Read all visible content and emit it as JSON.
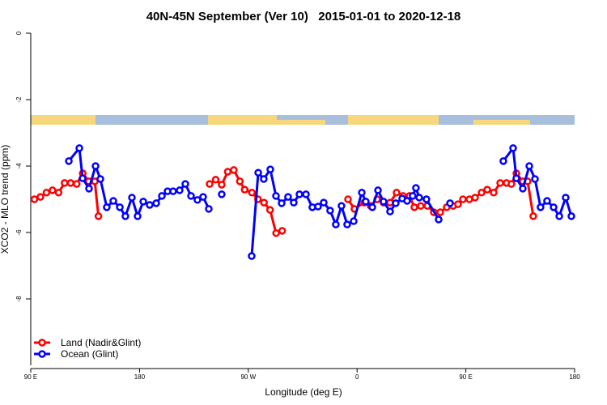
{
  "chart_data": {
    "type": "line",
    "title": "40N-45N September (Ver 10)   2015-01-01 to 2020-12-18",
    "x_label": "Longitude (deg E)",
    "y_label": "XCO2 - MLO trend (ppm)",
    "xlim": [
      90,
      540
    ],
    "xticks": [
      {
        "value": 90,
        "label": "90 E"
      },
      180,
      {
        "value": 270,
        "label": "90 W"
      },
      {
        "value": 360,
        "label": "0"
      },
      {
        "value": 450,
        "label": "90 E"
      },
      {
        "value": 540,
        "label": "180"
      }
    ],
    "ylim": [
      -10,
      0
    ],
    "yticks": [
      0,
      -2,
      -4,
      -6,
      -8
    ],
    "legend": "bottom-left",
    "series": [
      {
        "name": "Land (Nadir&Glint)",
        "color": "#ff0000",
        "x": [
          93,
          98,
          103,
          108,
          113,
          118,
          123,
          128,
          133,
          138,
          143,
          146,
          null,
          238,
          243,
          248,
          253,
          258,
          263,
          267,
          273,
          278,
          283,
          288,
          293,
          298,
          null,
          352.5,
          357.8,
          365.9,
          371.2,
          376.6,
          381.9,
          387.3,
          392.7,
          398,
          403.4,
          407.4,
          412.7,
          418.1,
          423.5,
          428.8,
          434.2,
          439.5,
          443.5,
          447.6,
          452.9,
          457.6,
          463,
          467.7,
          473,
          478.4,
          483.7,
          487.7,
          491.8,
          497.1,
          501.1,
          505.8
        ],
        "values": [
          -5.0,
          -4.93,
          -4.8,
          -4.73,
          -4.8,
          -4.51,
          -4.51,
          -4.54,
          -4.22,
          -4.46,
          -4.46,
          -5.51,
          null,
          -4.54,
          -4.41,
          -4.56,
          -4.17,
          -4.12,
          -4.46,
          -4.71,
          -4.8,
          -5.0,
          -5.1,
          -5.32,
          -6.02,
          -5.95,
          null,
          -5.0,
          -5.29,
          -5.1,
          -5.2,
          -5.0,
          -5.1,
          -5.1,
          -4.8,
          -4.9,
          -4.9,
          -5.24,
          -5.2,
          -5.2,
          -5.39,
          -5.39,
          -5.24,
          -5.2,
          -5.15,
          -5.0,
          -5.0,
          -4.95,
          -4.8,
          -4.71,
          -4.8,
          -4.51,
          -4.51,
          -4.54,
          -4.22,
          -4.46,
          -4.46,
          -5.51
        ]
      },
      {
        "name": "Ocean (Glint)",
        "color": "#0000ff",
        "x": [
          121.5,
          130.2,
          132.9,
          138.2,
          143.6,
          147.6,
          152.9,
          158.3,
          163.7,
          168.3,
          173.7,
          178.4,
          183.1,
          188.4,
          193.8,
          198.5,
          203.2,
          207.8,
          213.2,
          217.9,
          222.6,
          227.9,
          232.6,
          237.3,
          null,
          248,
          null,
          272.8,
          278.2,
          282.8,
          288.2,
          292.9,
          297.6,
          302.9,
          307.6,
          312.3,
          317.7,
          323,
          327.7,
          332.4,
          337.7,
          342.4,
          347.1,
          351.8,
          357.2,
          363.9,
          367.2,
          372.6,
          377.3,
          381.9,
          387.3,
          392,
          397.3,
          401.4,
          406,
          408.7,
          411.4,
          417.4,
          427.5,
          null,
          436.9,
          null,
          481,
          489.1,
          491.8,
          497.1,
          502.5,
          507.2,
          511.8,
          517.2,
          522.6,
          527.3,
          532.6,
          537.3
        ],
        "values": [
          -3.85,
          -3.46,
          -4.37,
          -4.68,
          -4.0,
          -4.39,
          -5.24,
          -5.05,
          -5.24,
          -5.51,
          -4.95,
          -5.51,
          -5.07,
          -5.17,
          -5.12,
          -4.9,
          -4.76,
          -4.76,
          -4.73,
          -4.54,
          -4.9,
          -5.02,
          -4.93,
          -5.29,
          null,
          -4.85,
          null,
          -6.71,
          -4.2,
          -4.39,
          -4.1,
          -4.9,
          -5.12,
          -4.93,
          -5.1,
          -4.85,
          -4.85,
          -5.24,
          -5.22,
          -5.1,
          -5.34,
          -5.76,
          -5.2,
          -5.76,
          -5.66,
          -4.8,
          -5.07,
          -5.24,
          -4.73,
          -5.07,
          -5.37,
          -5.12,
          -4.98,
          -5.05,
          -4.9,
          -4.66,
          -4.95,
          -5.0,
          -5.61,
          null,
          -5.12,
          null,
          -3.85,
          -3.46,
          -4.37,
          -4.68,
          -4.0,
          -4.39,
          -5.24,
          -5.05,
          -5.24,
          -5.51,
          -4.95,
          -5.51
        ]
      }
    ]
  }
}
